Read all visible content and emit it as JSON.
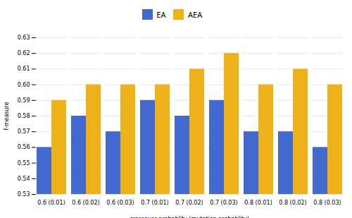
{
  "chart_data": {
    "type": "bar",
    "categories": [
      "0.6 (0.01)",
      "0.6 (0.02)",
      "0.6 (0.03)",
      "0.7 (0.01)",
      "0.7 (0.02)",
      "0.7 (0.03)",
      "0.8 (0.01)",
      "0.8 (0.02)",
      "0.8 (0.03)"
    ],
    "series": [
      {
        "name": "EA",
        "values": [
          0.56,
          0.58,
          0.57,
          0.59,
          0.58,
          0.59,
          0.57,
          0.57,
          0.56
        ]
      },
      {
        "name": "AEA",
        "values": [
          0.59,
          0.6,
          0.6,
          0.6,
          0.61,
          0.62,
          0.6,
          0.61,
          0.6
        ]
      }
    ],
    "xlabel": "crossover probablity (mutation probablity)",
    "ylabel": "f-measure",
    "ylim": [
      0.53,
      0.63
    ],
    "yticks": [
      0.53,
      0.54,
      0.55,
      0.56,
      0.57,
      0.58,
      0.59,
      {
        "value": 0.6,
        "label": "0.60"
      },
      0.61,
      0.62,
      0.63
    ],
    "grid": true,
    "legend": "top"
  }
}
